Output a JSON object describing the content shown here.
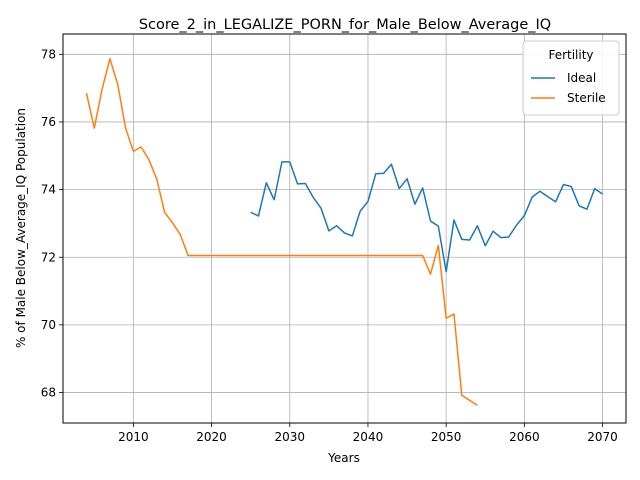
{
  "chart_data": {
    "type": "line",
    "title": "Score_2_in_LEGALIZE_PORN_for_Male_Below_Average_IQ",
    "xlabel": "Years",
    "ylabel": "% of Male Below_Average_IQ Population",
    "xlim": [
      2001,
      2073
    ],
    "ylim": [
      67.1,
      78.6
    ],
    "xticks": [
      2010,
      2020,
      2030,
      2040,
      2050,
      2060,
      2070
    ],
    "yticks": [
      68,
      70,
      72,
      74,
      76,
      78
    ],
    "xtick_labels": [
      "2010",
      "2020",
      "2030",
      "2040",
      "2050",
      "2060",
      "2070"
    ],
    "ytick_labels": [
      "68",
      "70",
      "72",
      "74",
      "76",
      "78"
    ],
    "grid": true,
    "legend": {
      "title": "Fertility",
      "placement": "top-right"
    },
    "series": [
      {
        "name": "Ideal",
        "color": "#1f77b4",
        "x": [
          2025,
          2026,
          2027,
          2028,
          2029,
          2030,
          2031,
          2032,
          2033,
          2034,
          2035,
          2036,
          2037,
          2038,
          2039,
          2040,
          2041,
          2042,
          2043,
          2044,
          2045,
          2046,
          2047,
          2048,
          2049,
          2050,
          2051,
          2052,
          2053,
          2054,
          2055,
          2056,
          2057,
          2058,
          2059,
          2060,
          2061,
          2062,
          2063,
          2064,
          2065,
          2066,
          2067,
          2068,
          2069,
          2070
        ],
        "y": [
          73.33,
          73.22,
          74.2,
          73.7,
          74.82,
          74.82,
          74.17,
          74.18,
          73.77,
          73.45,
          72.78,
          72.93,
          72.72,
          72.63,
          73.36,
          73.65,
          74.47,
          74.48,
          74.75,
          74.03,
          74.32,
          73.57,
          74.05,
          73.07,
          72.92,
          71.57,
          73.1,
          72.53,
          72.51,
          72.93,
          72.34,
          72.77,
          72.58,
          72.6,
          72.95,
          73.23,
          73.78,
          73.95,
          73.79,
          73.64,
          74.15,
          74.09,
          73.52,
          73.42,
          74.03,
          73.87
        ]
      },
      {
        "name": "Sterile",
        "color": "#ff7f0e",
        "x": [
          2004,
          2005,
          2006,
          2007,
          2008,
          2009,
          2010,
          2011,
          2012,
          2013,
          2014,
          2015,
          2016,
          2017,
          2018,
          2019,
          2020,
          2021,
          2022,
          2023,
          2024,
          2025,
          2026,
          2027,
          2028,
          2029,
          2030,
          2031,
          2032,
          2033,
          2034,
          2035,
          2036,
          2037,
          2038,
          2039,
          2040,
          2041,
          2042,
          2043,
          2044,
          2045,
          2046,
          2047,
          2048,
          2049,
          2050,
          2051,
          2052,
          2053,
          2054
        ],
        "y": [
          76.85,
          75.82,
          76.97,
          77.87,
          77.11,
          75.82,
          75.13,
          75.26,
          74.88,
          74.3,
          73.32,
          73.02,
          72.67,
          72.05,
          72.05,
          72.05,
          72.05,
          72.05,
          72.05,
          72.05,
          72.05,
          72.05,
          72.05,
          72.05,
          72.05,
          72.05,
          72.05,
          72.05,
          72.05,
          72.05,
          72.05,
          72.05,
          72.05,
          72.05,
          72.05,
          72.05,
          72.05,
          72.05,
          72.05,
          72.05,
          72.05,
          72.05,
          72.05,
          72.05,
          71.5,
          72.35,
          70.2,
          70.32,
          67.92,
          67.77,
          67.62
        ]
      }
    ]
  }
}
